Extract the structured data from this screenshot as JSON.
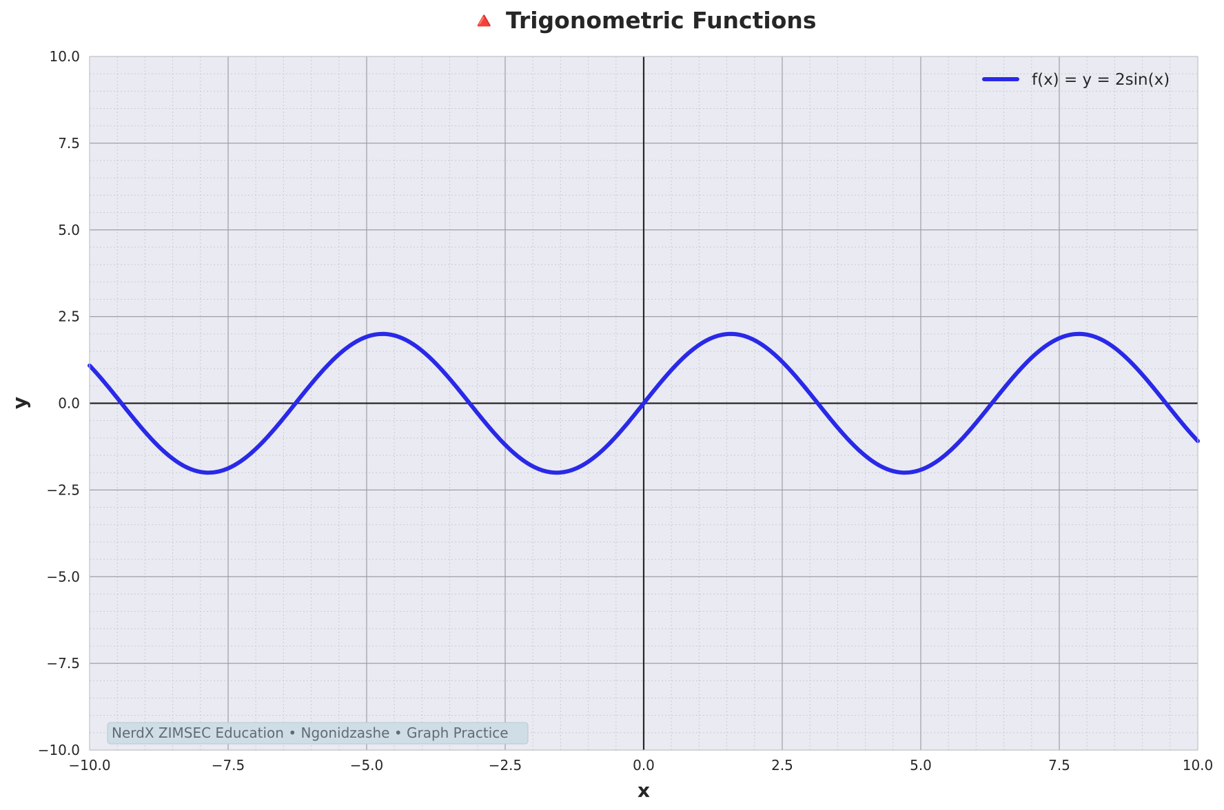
{
  "chart_data": {
    "type": "line",
    "title": "🔺 Trigonometric Functions",
    "xlabel": "x",
    "ylabel": "y",
    "xlim": [
      -10,
      10
    ],
    "ylim": [
      -10,
      10
    ],
    "x_ticks": [
      -10,
      -7.5,
      -5,
      -2.5,
      0,
      2.5,
      5,
      7.5,
      10
    ],
    "y_ticks": [
      -10,
      -7.5,
      -5,
      -2.5,
      0,
      2.5,
      5,
      7.5,
      10
    ],
    "x_tick_labels": [
      "−10.0",
      "−7.5",
      "−5.0",
      "−2.5",
      "0.0",
      "2.5",
      "5.0",
      "7.5",
      "10.0"
    ],
    "y_tick_labels": [
      "−10.0",
      "−7.5",
      "−5.0",
      "−2.5",
      "0.0",
      "2.5",
      "5.0",
      "7.5",
      "10.0"
    ],
    "grid": true,
    "minor_grid": true,
    "legend_position": "top-right",
    "series": [
      {
        "name": "f(x) = y = 2sin(x)",
        "function": "2sin(x)",
        "color": "#2929e8",
        "x": [
          -10,
          -9.5,
          -9,
          -8.5,
          -8,
          -7.5,
          -7,
          -6.5,
          -6,
          -5.5,
          -5,
          -4.5,
          -4,
          -3.5,
          -3,
          -2.5,
          -2,
          -1.5,
          -1,
          -0.5,
          0,
          0.5,
          1,
          1.5,
          2,
          2.5,
          3,
          3.5,
          4,
          4.5,
          5,
          5.5,
          6,
          6.5,
          7,
          7.5,
          8,
          8.5,
          9,
          9.5,
          10
        ],
        "y": [
          1.088,
          -0.15,
          -0.824,
          -1.596,
          -1.979,
          -1.876,
          -1.314,
          -0.43,
          0.559,
          1.411,
          1.918,
          1.955,
          1.514,
          0.702,
          -0.282,
          -1.197,
          -1.819,
          -1.995,
          -1.683,
          -0.959,
          0,
          0.959,
          1.683,
          1.995,
          1.819,
          1.197,
          0.282,
          -0.702,
          -1.514,
          -1.955,
          -1.918,
          -1.411,
          -0.559,
          0.43,
          1.314,
          1.876,
          1.979,
          1.596,
          0.824,
          0.15,
          -1.088
        ]
      }
    ],
    "annotation": "NerdX ZIMSEC Education • Ngonidzashe • Graph Practice"
  },
  "colors": {
    "plot_background": "#eaeaf2",
    "major_grid": "#9e9ea6",
    "minor_grid": "#cacad2",
    "axis_line": "#262626",
    "curve": "#2929e8"
  }
}
